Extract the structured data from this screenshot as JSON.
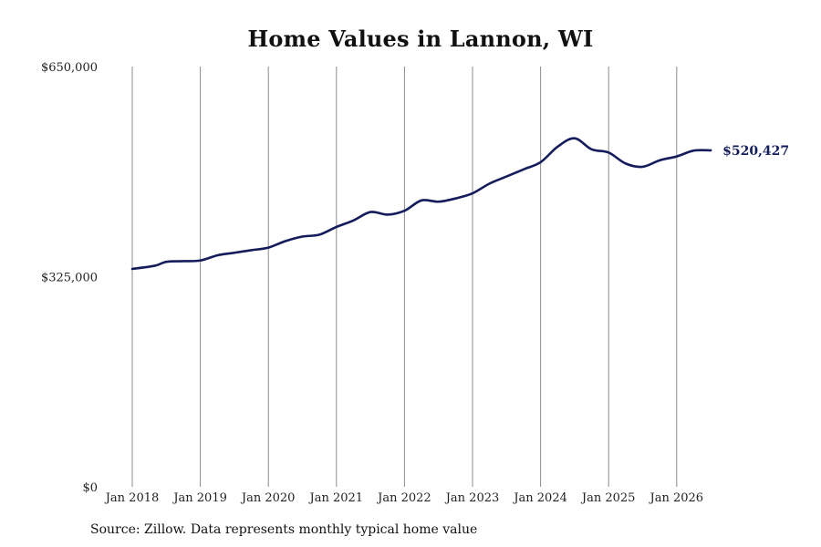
{
  "title": "Home Values in Lannon, WI",
  "source": "Source: Zillow. Data represents monthly typical home value",
  "colors": {
    "line": "#141c5c",
    "grid": "#8c8c8c",
    "text": "#222222"
  },
  "chart_data": {
    "type": "line",
    "title": "Home Values in Lannon, WI",
    "xlabel": "",
    "ylabel": "",
    "ylim": [
      0,
      650000
    ],
    "y_ticks": [
      0,
      325000,
      650000
    ],
    "y_tick_labels": [
      "$0",
      "$325,000",
      "$650,000"
    ],
    "x_ticks": [
      "2018-01",
      "2019-01",
      "2020-01",
      "2021-01",
      "2022-01",
      "2023-01",
      "2024-01",
      "2025-01",
      "2026-01"
    ],
    "x_tick_labels": [
      "Jan 2018",
      "Jan 2019",
      "Jan 2020",
      "Jan 2021",
      "Jan 2022",
      "Jan 2023",
      "Jan 2024",
      "Jan 2025",
      "Jan 2026"
    ],
    "grid": "vertical",
    "end_label": "$520,427",
    "series": [
      {
        "x": [
          "2018-01",
          "2018-05",
          "2018-07",
          "2018-10",
          "2019-01",
          "2019-04",
          "2019-07",
          "2019-10",
          "2020-01",
          "2020-04",
          "2020-07",
          "2020-10",
          "2021-01",
          "2021-04",
          "2021-07",
          "2021-10",
          "2022-01",
          "2022-04",
          "2022-07",
          "2022-10",
          "2023-01",
          "2023-04",
          "2023-07",
          "2023-10",
          "2024-01",
          "2024-04",
          "2024-07",
          "2024-10",
          "2025-01",
          "2025-04",
          "2025-07",
          "2025-10",
          "2026-01",
          "2026-04",
          "2026-07"
        ],
        "y": [
          337000,
          342000,
          348000,
          349000,
          350000,
          358000,
          362000,
          366000,
          370000,
          380000,
          387000,
          390000,
          402000,
          412000,
          425000,
          421000,
          427000,
          443000,
          441000,
          446000,
          454000,
          469000,
          480000,
          491000,
          502000,
          526000,
          539000,
          522000,
          517000,
          500000,
          495000,
          505000,
          511000,
          520000,
          520427
        ]
      }
    ]
  }
}
